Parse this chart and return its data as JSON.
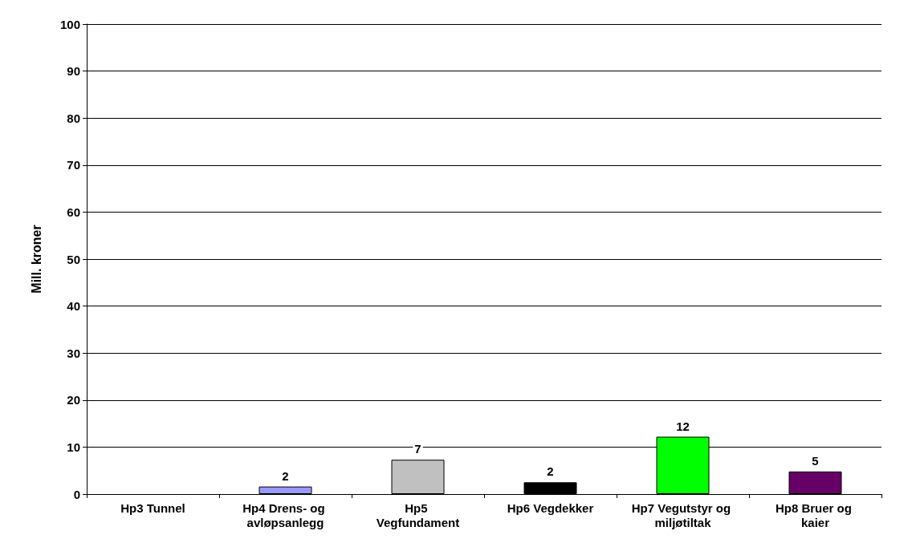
{
  "chart_data": {
    "type": "bar",
    "ylabel": "Mill. kroner",
    "categories": [
      "Hp3 Tunnel",
      "Hp4 Drens- og avløpsanlegg",
      "Hp5 Vegfundament",
      "Hp6 Vegdekker",
      "Hp7 Vegutstyr og miljøtiltak",
      "Hp8 Bruer og kaier"
    ],
    "values": [
      null,
      1.6,
      7.3,
      2.5,
      12.2,
      4.8
    ],
    "value_labels": [
      null,
      "2",
      "7",
      "2",
      "12",
      "5"
    ],
    "colors": [
      "#9999ff",
      "#9999ff",
      "#c0c0c0",
      "#000000",
      "#00ff00",
      "#660066"
    ],
    "ylim": [
      0,
      100
    ],
    "yticks": [
      0,
      10,
      20,
      30,
      40,
      50,
      60,
      70,
      80,
      90,
      100
    ],
    "grid": "y"
  }
}
